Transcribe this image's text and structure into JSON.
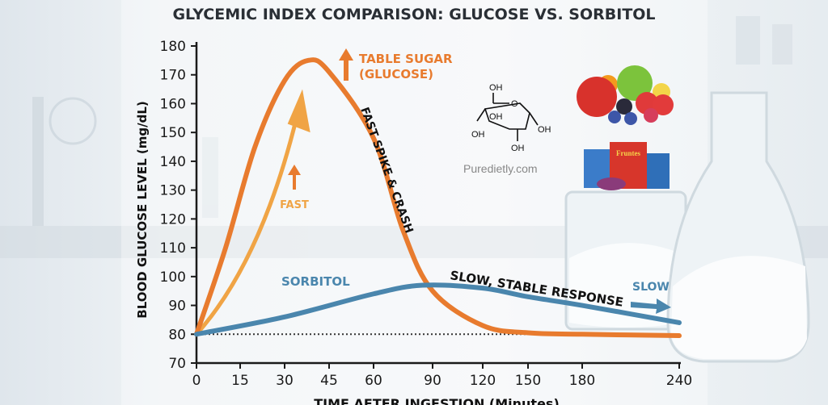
{
  "chart_data": {
    "type": "line",
    "title": "GLYCEMIC INDEX COMPARISON: GLUCOSE VS. SORBITOL",
    "xlabel": "TIME AFTER INGESTION (Minutes)",
    "ylabel": "BLOOD GLUCOSE LEVEL (mg/dL)",
    "x_ticks": [
      0,
      15,
      30,
      45,
      60,
      90,
      120,
      150,
      180,
      240
    ],
    "y_ticks": [
      70,
      80,
      90,
      100,
      110,
      120,
      130,
      140,
      150,
      160,
      170,
      180
    ],
    "xlim": [
      0,
      240
    ],
    "ylim": [
      70,
      180
    ],
    "grid": false,
    "baseline": 80,
    "series": [
      {
        "name": "TABLE SUGAR (GLUCOSE)",
        "color": "#e87b2e",
        "x": [
          0,
          10,
          20,
          30,
          38,
          45,
          60,
          75,
          90,
          120,
          150,
          180,
          240
        ],
        "y": [
          80,
          110,
          145,
          168,
          175,
          171,
          148,
          116,
          95,
          83,
          80.5,
          80,
          79.5
        ]
      },
      {
        "name": "SORBITOL",
        "color": "#4a86ad",
        "x": [
          0,
          30,
          60,
          85,
          120,
          150,
          180,
          240
        ],
        "y": [
          80,
          86,
          94,
          97,
          96,
          93,
          90,
          84
        ]
      }
    ],
    "annotations": {
      "glucose_label": "TABLE SUGAR",
      "glucose_label_2": "(GLUCOSE)",
      "fast": "FAST",
      "spike": "FAST SPIKE & CRASH",
      "sorbitol": "SORBITOL",
      "stable": "SLOW, STABLE RESPONSE",
      "slow": "SLOW"
    },
    "colors": {
      "glucose": "#e87b2e",
      "glucose_light": "#f0a445",
      "sorbitol": "#4a86ad",
      "axis": "#1a1a1a"
    }
  },
  "molecule": {
    "labels": [
      "OH",
      "O",
      "OH",
      "OH",
      "OH",
      "OH"
    ]
  },
  "watermark": "Puredietly.com",
  "food_pack_label": "Fruntes"
}
